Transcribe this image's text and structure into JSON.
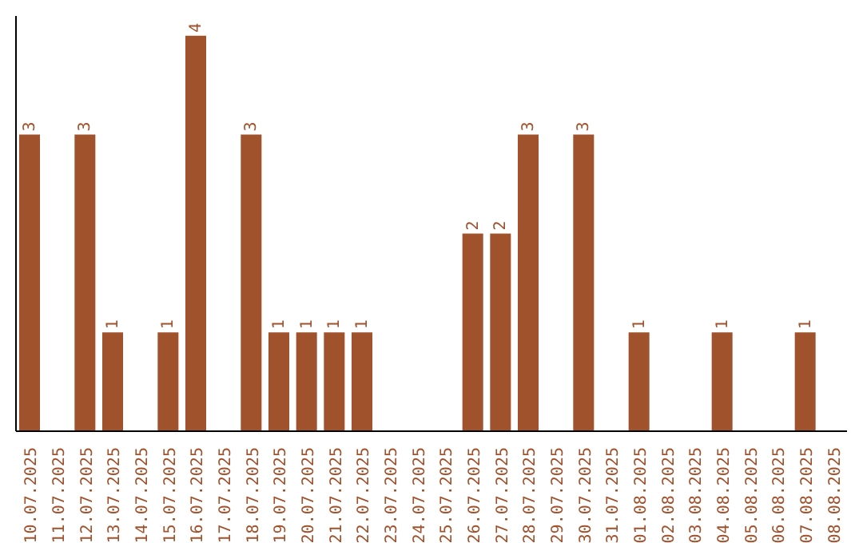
{
  "chart_data": {
    "type": "bar",
    "categories": [
      "10.07.2025",
      "11.07.2025",
      "12.07.2025",
      "13.07.2025",
      "14.07.2025",
      "15.07.2025",
      "16.07.2025",
      "17.07.2025",
      "18.07.2025",
      "19.07.2025",
      "20.07.2025",
      "21.07.2025",
      "22.07.2025",
      "23.07.2025",
      "24.07.2025",
      "25.07.2025",
      "26.07.2025",
      "27.07.2025",
      "28.07.2025",
      "29.07.2025",
      "30.07.2025",
      "31.07.2025",
      "01.08.2025",
      "02.08.2025",
      "03.08.2025",
      "04.08.2025",
      "05.08.2025",
      "06.08.2025",
      "07.08.2025",
      "08.08.2025"
    ],
    "values": [
      3,
      0,
      3,
      1,
      0,
      1,
      4,
      0,
      3,
      1,
      1,
      1,
      1,
      0,
      0,
      0,
      2,
      2,
      3,
      0,
      3,
      0,
      1,
      0,
      0,
      1,
      0,
      0,
      1,
      0
    ],
    "value_labels": [
      "3",
      null,
      "3",
      "1",
      null,
      "1",
      "4",
      null,
      "3",
      "1",
      "1",
      "1",
      "1",
      null,
      null,
      null,
      "2",
      "2",
      "3",
      null,
      "3",
      null,
      "1",
      null,
      null,
      "1",
      null,
      null,
      "1",
      null
    ],
    "color": "#a0522d",
    "ylim": [
      0,
      4.2
    ],
    "tick_labels": "x",
    "grid": false
  }
}
